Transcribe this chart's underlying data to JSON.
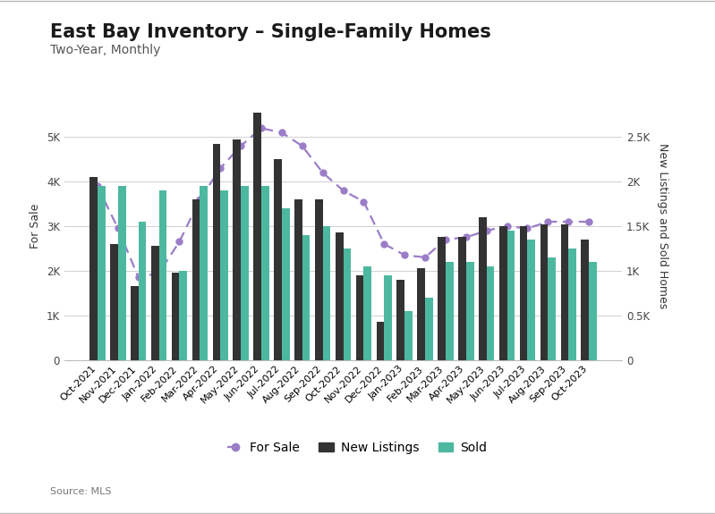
{
  "title": "East Bay Inventory – Single-Family Homes",
  "subtitle": "Two-Year, Monthly",
  "source": "Source: MLS",
  "ylabel_left": "For Sale",
  "ylabel_right": "New Listings and Sold Homes",
  "months": [
    "Oct-2021",
    "Nov-2021",
    "Dec-2021",
    "Jan-2022",
    "Feb-2022",
    "Mar-2022",
    "Apr-2022",
    "May-2022",
    "Jun-2022",
    "Jul-2022",
    "Aug-2022",
    "Sep-2022",
    "Oct-2022",
    "Nov-2022",
    "Dec-2022",
    "Jan-2023",
    "Feb-2023",
    "Mar-2023",
    "Apr-2023",
    "May-2023",
    "Jun-2023",
    "Jul-2023",
    "Aug-2023",
    "Sep-2023",
    "Oct-2023"
  ],
  "for_sale": [
    3900,
    2950,
    1850,
    1950,
    2650,
    3600,
    4300,
    4800,
    5200,
    5100,
    4800,
    4200,
    3800,
    3550,
    2600,
    2350,
    2300,
    2700,
    2750,
    2900,
    3000,
    2950,
    3100,
    3100,
    3100
  ],
  "new_listings": [
    2050,
    1300,
    825,
    1275,
    975,
    1800,
    2425,
    2475,
    2775,
    2250,
    1800,
    1800,
    1425,
    950,
    425,
    900,
    1025,
    1375,
    1375,
    1600,
    1500,
    1500,
    1525,
    1525,
    1350
  ],
  "sold": [
    1950,
    1950,
    1550,
    1900,
    1000,
    1950,
    1900,
    1950,
    1950,
    1700,
    1400,
    1500,
    1250,
    1050,
    950,
    550,
    700,
    1100,
    1100,
    1050,
    1450,
    1350,
    1150,
    1250,
    1100
  ],
  "for_sale_color": "#9b7dc8",
  "new_listings_color": "#333333",
  "sold_color": "#4db8a0",
  "background_color": "#ffffff",
  "ylim_left": [
    0,
    6000
  ],
  "ylim_right": [
    0,
    3000
  ],
  "yticks_left": [
    0,
    1000,
    2000,
    3000,
    4000,
    5000
  ],
  "ytick_labels_left": [
    "0",
    "1K",
    "2K",
    "3K",
    "4K",
    "5K"
  ],
  "yticks_right": [
    0,
    500,
    1000,
    1500,
    2000,
    2500
  ],
  "ytick_labels_right": [
    "0",
    "0.5K",
    "1K",
    "1.5K",
    "2K",
    "2.5K"
  ],
  "title_fontsize": 15,
  "subtitle_fontsize": 10,
  "label_fontsize": 9,
  "tick_fontsize": 8.5,
  "legend_fontsize": 10,
  "bar_width": 0.38
}
